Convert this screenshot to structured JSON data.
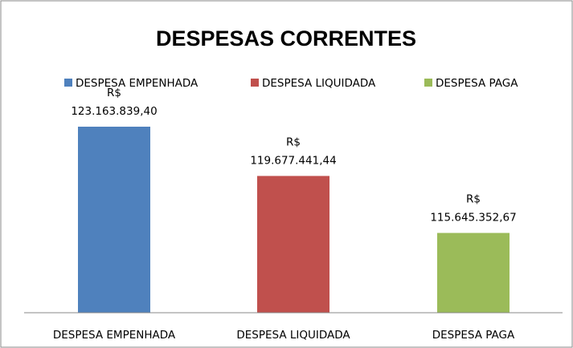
{
  "chart_data": {
    "type": "bar",
    "title": "DESPESAS CORRENTES",
    "categories": [
      "DESPESA EMPENHADA",
      "DESPESA LIQUIDADA",
      "DESPESA PAGA"
    ],
    "values": [
      123163839.4,
      119677441.44,
      115645352.67
    ],
    "value_labels": [
      "R$ 123.163.839,40",
      "R$ 119.677.441,44",
      "R$ 115.645.352,67"
    ],
    "colors": [
      "#4f81bd",
      "#c0504d",
      "#9bbb59"
    ],
    "ylim": [
      110000000,
      126000000
    ],
    "legend": "top"
  }
}
